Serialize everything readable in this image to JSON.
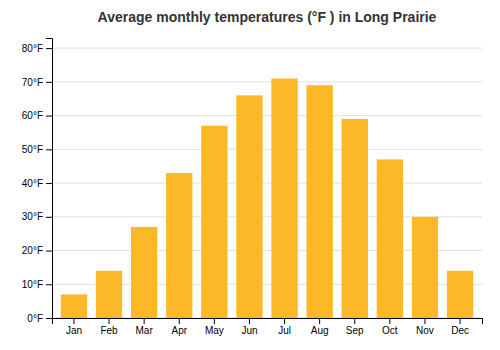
{
  "chart_data": {
    "type": "bar",
    "title": "Average monthly temperatures (°F ) in Long Prairie",
    "categories": [
      "Jan",
      "Feb",
      "Mar",
      "Apr",
      "May",
      "Jun",
      "Jul",
      "Aug",
      "Sep",
      "Oct",
      "Nov",
      "Dec"
    ],
    "values": [
      7,
      14,
      27,
      43,
      57,
      66,
      71,
      69,
      59,
      47,
      30,
      14
    ],
    "color": "#FDB827",
    "ylim": [
      0,
      83
    ],
    "yticks": [
      {
        "value": 0,
        "label": "0°F"
      },
      {
        "value": 10,
        "label": "10°F"
      },
      {
        "value": 20,
        "label": "20°F"
      },
      {
        "value": 30,
        "label": "30°F"
      },
      {
        "value": 40,
        "label": "40°F"
      },
      {
        "value": 50,
        "label": "50°F"
      },
      {
        "value": 60,
        "label": "60°F"
      },
      {
        "value": 70,
        "label": "70°F"
      },
      {
        "value": 80,
        "label": "80°F"
      }
    ],
    "grid": true
  }
}
